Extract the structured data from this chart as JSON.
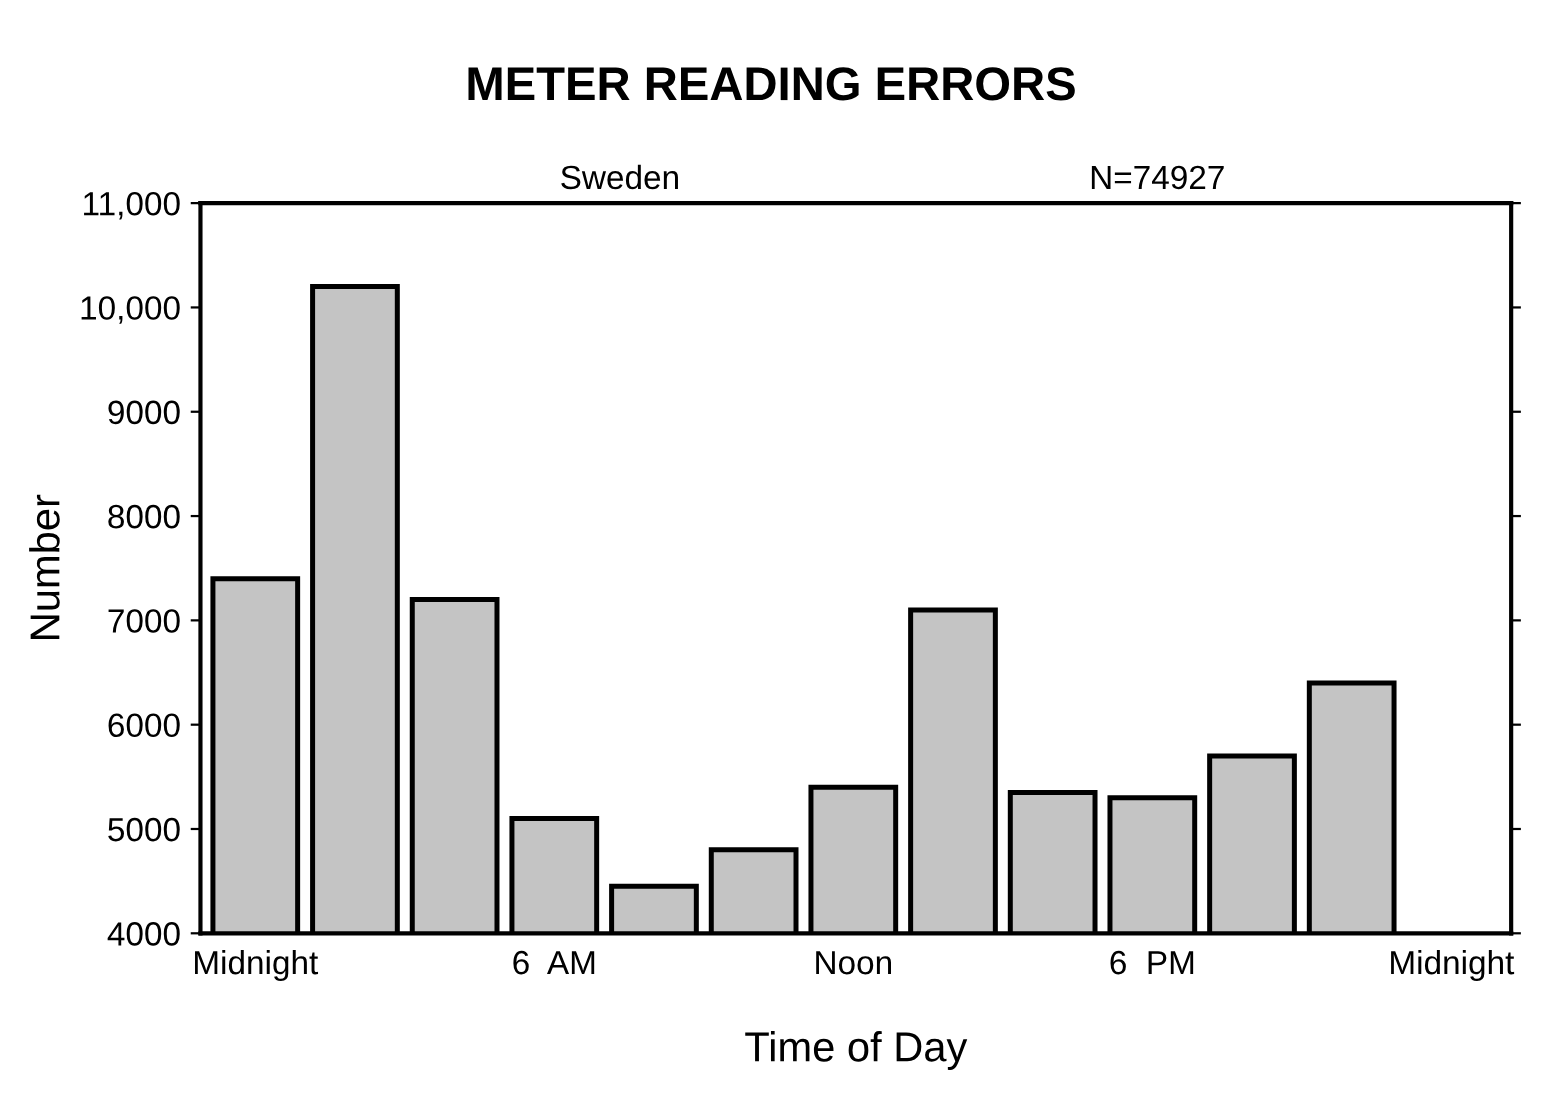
{
  "chart_data": {
    "type": "bar",
    "title": "METER READING ERRORS",
    "xlabel": "Time of Day",
    "ylabel": "Number",
    "annotations": [
      "Sweden",
      "N=74927"
    ],
    "categories": [
      "Midnight",
      null,
      null,
      "6  AM",
      null,
      null,
      "Noon",
      null,
      null,
      "6  PM",
      null,
      null,
      "Midnight"
    ],
    "values": [
      7400,
      10200,
      7200,
      5100,
      4450,
      4800,
      5400,
      7100,
      5350,
      5300,
      5700,
      6400,
      null
    ],
    "color": "#c4c4c4",
    "ylim": [
      4000,
      11000
    ],
    "yticks": [
      4000,
      5000,
      6000,
      7000,
      8000,
      9000,
      {
        "value": 10000,
        "label": "10,000"
      },
      {
        "value": 11000,
        "label": "11,000"
      }
    ],
    "grid": false,
    "legend": false
  }
}
